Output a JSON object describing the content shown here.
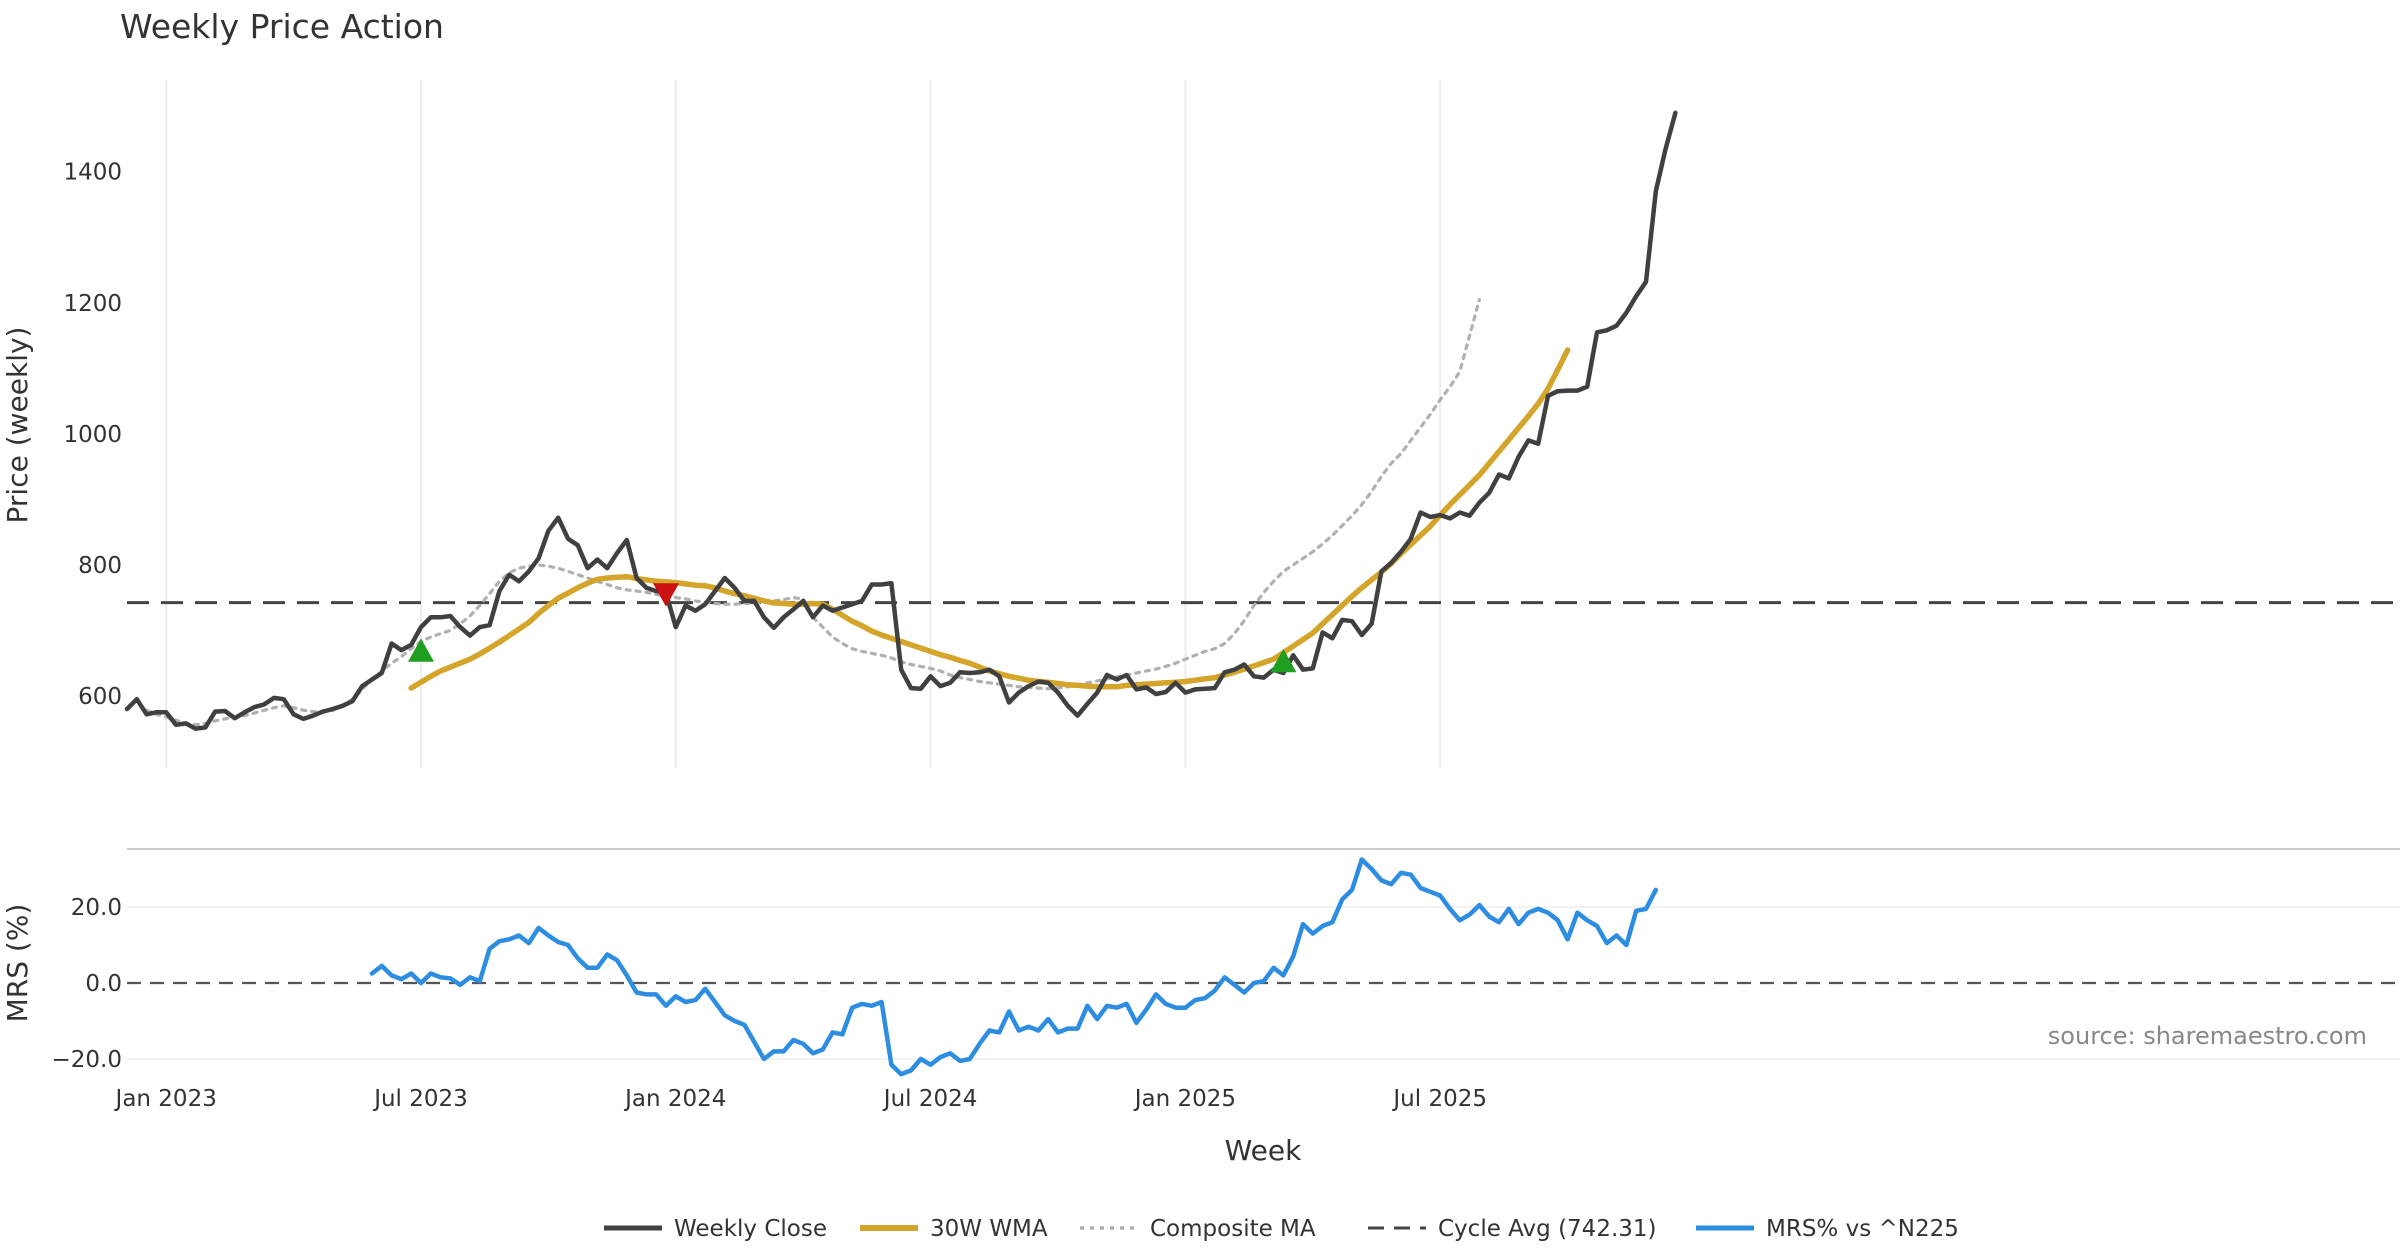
{
  "chart_data": {
    "type": "line",
    "title": "Weekly Price Action",
    "xlabel": "Week",
    "x_ticks": [
      "Jan 2023",
      "Jul 2023",
      "Jan 2024",
      "Jul 2024",
      "Jan 2025",
      "Jul 2025"
    ],
    "x_tick_weeks": [
      4,
      30,
      56,
      82,
      108,
      134
    ],
    "price_panel": {
      "ylabel": "Price (weekly)",
      "ylim": [
        490,
        1540
      ],
      "y_ticks": [
        600,
        800,
        1000,
        1200,
        1400
      ],
      "cycle_avg": 742.31,
      "grid": "vertical"
    },
    "mrs_panel": {
      "ylabel": "MRS (%)",
      "ylim": [
        -25,
        35
      ],
      "y_ticks": [
        20,
        0,
        -20
      ],
      "y_tick_labels": [
        "20.0",
        "0.0",
        "−20.0"
      ],
      "zero_line": 0
    },
    "series": [
      {
        "name": "Weekly Close",
        "color": "#404040",
        "style": "solid",
        "start_week": 0,
        "values": [
          580,
          595,
          572,
          575,
          575,
          556,
          558,
          550,
          552,
          576,
          577,
          566,
          575,
          583,
          587,
          597,
          595,
          572,
          565,
          570,
          576,
          580,
          585,
          592,
          615,
          625,
          635,
          680,
          670,
          678,
          705,
          720,
          720,
          722,
          705,
          692,
          705,
          708,
          760,
          785,
          775,
          790,
          810,
          852,
          872,
          840,
          830,
          795,
          808,
          795,
          818,
          838,
          780,
          765,
          760,
          757,
          705,
          738,
          730,
          740,
          760,
          780,
          765,
          745,
          745,
          720,
          704,
          720,
          732,
          745,
          720,
          738,
          730,
          735,
          740,
          745,
          770,
          770,
          772,
          640,
          612,
          611,
          630,
          615,
          620,
          636,
          635,
          636,
          640,
          630,
          590,
          605,
          615,
          622,
          620,
          605,
          585,
          570,
          588,
          605,
          632,
          625,
          632,
          610,
          613,
          603,
          606,
          620,
          605,
          610,
          611,
          612,
          636,
          640,
          648,
          630,
          628,
          640,
          635,
          662,
          640,
          642,
          697,
          688,
          716,
          714,
          693,
          710,
          790,
          803,
          820,
          840,
          880,
          873,
          876,
          871,
          880,
          875,
          895,
          910,
          938,
          932,
          965,
          990,
          985,
          1058,
          1065,
          1066,
          1066,
          1072,
          1155,
          1158,
          1165,
          1185,
          1210,
          1232,
          1370,
          1435,
          1490
        ]
      },
      {
        "name": "30W WMA",
        "color": "#d4a52a",
        "style": "solid",
        "start_week": 29,
        "values": [
          612,
          621,
          630,
          638,
          644,
          650,
          656,
          664,
          673,
          682,
          692,
          702,
          712,
          726,
          738,
          749,
          757,
          765,
          772,
          778,
          780,
          781,
          782,
          779,
          777,
          775,
          774,
          773,
          771,
          769,
          768,
          765,
          760,
          756,
          753,
          749,
          745,
          742,
          741,
          740,
          740,
          741,
          740,
          732,
          723,
          714,
          707,
          699,
          693,
          688,
          683,
          678,
          673,
          668,
          663,
          659,
          654,
          650,
          644,
          638,
          634,
          630,
          627,
          624,
          622,
          621,
          619,
          617,
          616,
          615,
          614,
          614,
          614,
          616,
          617,
          618,
          619,
          620,
          621,
          622,
          624,
          626,
          628,
          632,
          636,
          641,
          646,
          651,
          656,
          666,
          676,
          686,
          696,
          710,
          724,
          738,
          752,
          765,
          777,
          789,
          802,
          817,
          831,
          845,
          859,
          876,
          892,
          907,
          922,
          937,
          955,
          973,
          991,
          1009,
          1027,
          1046,
          1069,
          1098,
          1128
        ]
      },
      {
        "name": "Composite MA",
        "color": "#b0b0b0",
        "style": "dotted",
        "start_week": 2,
        "values": [
          578,
          572,
          568,
          563,
          558,
          556,
          558,
          562,
          565,
          568,
          570,
          574,
          578,
          582,
          585,
          582,
          578,
          576,
          576,
          578,
          585,
          595,
          610,
          625,
          638,
          650,
          660,
          672,
          683,
          690,
          695,
          700,
          710,
          722,
          738,
          756,
          775,
          788,
          795,
          798,
          800,
          798,
          795,
          790,
          785,
          780,
          775,
          770,
          765,
          762,
          760,
          758,
          755,
          752,
          750,
          748,
          745,
          743,
          741,
          740,
          740,
          741,
          742,
          743,
          745,
          747,
          750,
          748,
          720,
          705,
          690,
          680,
          672,
          668,
          665,
          662,
          658,
          652,
          648,
          645,
          642,
          638,
          632,
          628,
          625,
          622,
          620,
          618,
          616,
          614,
          613,
          612,
          611,
          612,
          614,
          617,
          620,
          623,
          626,
          629,
          632,
          635,
          638,
          641,
          645,
          650,
          656,
          662,
          668,
          672,
          680,
          695,
          715,
          738,
          758,
          775,
          790,
          800,
          810,
          820,
          832,
          845,
          860,
          875,
          892,
          912,
          935,
          955,
          970,
          990,
          1010,
          1030,
          1052,
          1072,
          1095,
          1150,
          1205
        ]
      },
      {
        "name": "Cycle Avg (742.31)",
        "color": "#444444",
        "style": "dashed",
        "value": 742.31
      },
      {
        "name": "MRS% vs ^N225",
        "color": "#2d8de0",
        "style": "solid",
        "panel": "mrs",
        "start_week": 25,
        "values": [
          2.5,
          4.5,
          2,
          1,
          2.5,
          0,
          2.5,
          1.5,
          1.2,
          -0.5,
          1.5,
          0.5,
          9,
          11,
          11.5,
          12.5,
          10.5,
          14.5,
          12.5,
          10.8,
          10,
          6.5,
          4,
          4,
          7.5,
          6,
          2,
          -2.5,
          -3,
          -3,
          -6,
          -3.5,
          -5,
          -4.5,
          -1.5,
          -5,
          -8.5,
          -10,
          -11,
          -15.5,
          -20,
          -18,
          -18,
          -15,
          -16,
          -18.5,
          -17.5,
          -13,
          -13.5,
          -6.5,
          -5.5,
          -6,
          -5,
          -21.5,
          -24,
          -23,
          -20,
          -21.5,
          -19.5,
          -18.5,
          -20.5,
          -20,
          -16,
          -12.5,
          -13,
          -7.5,
          -12.5,
          -11.5,
          -12.5,
          -9.5,
          -13,
          -12,
          -12,
          -6,
          -9.5,
          -6,
          -6.5,
          -5.5,
          -10.5,
          -7,
          -3,
          -5.5,
          -6.5,
          -6.5,
          -4.5,
          -4,
          -2,
          1.5,
          -0.5,
          -2.5,
          0,
          0.5,
          4,
          2,
          7,
          15.5,
          13,
          15,
          16,
          22,
          24.5,
          32.5,
          30,
          27,
          26,
          29,
          28.5,
          25,
          24,
          23,
          19.5,
          16.5,
          18,
          20.5,
          17.5,
          16,
          19.5,
          15.5,
          18.5,
          19.5,
          18.5,
          16.5,
          11.5,
          18.5,
          16.5,
          15,
          10.5,
          12.5,
          10,
          19,
          19.5,
          24.5
        ]
      }
    ],
    "signals": [
      {
        "type": "buy",
        "color": "#1f9e1f",
        "week": 30,
        "value": 668
      },
      {
        "type": "sell",
        "color": "#cc1111",
        "week": 55,
        "value": 756
      },
      {
        "type": "buy",
        "color": "#1f9e1f",
        "week": 118,
        "value": 652
      }
    ],
    "legend": [
      "Weekly Close",
      "30W WMA",
      "Composite MA",
      "Cycle Avg (742.31)",
      "MRS% vs ^N225"
    ],
    "legend_position": "bottom-center",
    "source": "source: sharemaestro.com"
  }
}
